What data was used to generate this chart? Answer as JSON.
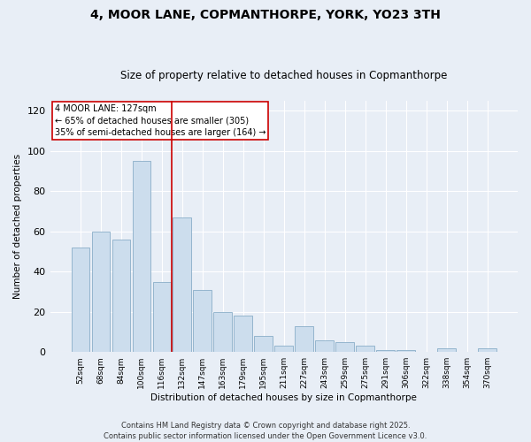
{
  "title": "4, MOOR LANE, COPMANTHORPE, YORK, YO23 3TH",
  "subtitle": "Size of property relative to detached houses in Copmanthorpe",
  "xlabel": "Distribution of detached houses by size in Copmanthorpe",
  "ylabel": "Number of detached properties",
  "categories": [
    "52sqm",
    "68sqm",
    "84sqm",
    "100sqm",
    "116sqm",
    "132sqm",
    "147sqm",
    "163sqm",
    "179sqm",
    "195sqm",
    "211sqm",
    "227sqm",
    "243sqm",
    "259sqm",
    "275sqm",
    "291sqm",
    "306sqm",
    "322sqm",
    "338sqm",
    "354sqm",
    "370sqm"
  ],
  "values": [
    52,
    60,
    56,
    95,
    35,
    67,
    31,
    20,
    18,
    8,
    3,
    13,
    6,
    5,
    3,
    1,
    1,
    0,
    2,
    0,
    2
  ],
  "bar_color": "#ccdded",
  "bar_edge_color": "#8aaec8",
  "background_color": "#e8eef6",
  "grid_color": "#ffffff",
  "vline_x": 4.5,
  "vline_color": "#cc0000",
  "annotation_title": "4 MOOR LANE: 127sqm",
  "annotation_line1": "← 65% of detached houses are smaller (305)",
  "annotation_line2": "35% of semi-detached houses are larger (164) →",
  "annotation_box_facecolor": "#ffffff",
  "annotation_box_edgecolor": "#cc0000",
  "ylim": [
    0,
    125
  ],
  "yticks": [
    0,
    20,
    40,
    60,
    80,
    100,
    120
  ],
  "title_fontsize": 10,
  "subtitle_fontsize": 8.5,
  "footer1": "Contains HM Land Registry data © Crown copyright and database right 2025.",
  "footer2": "Contains public sector information licensed under the Open Government Licence v3.0."
}
